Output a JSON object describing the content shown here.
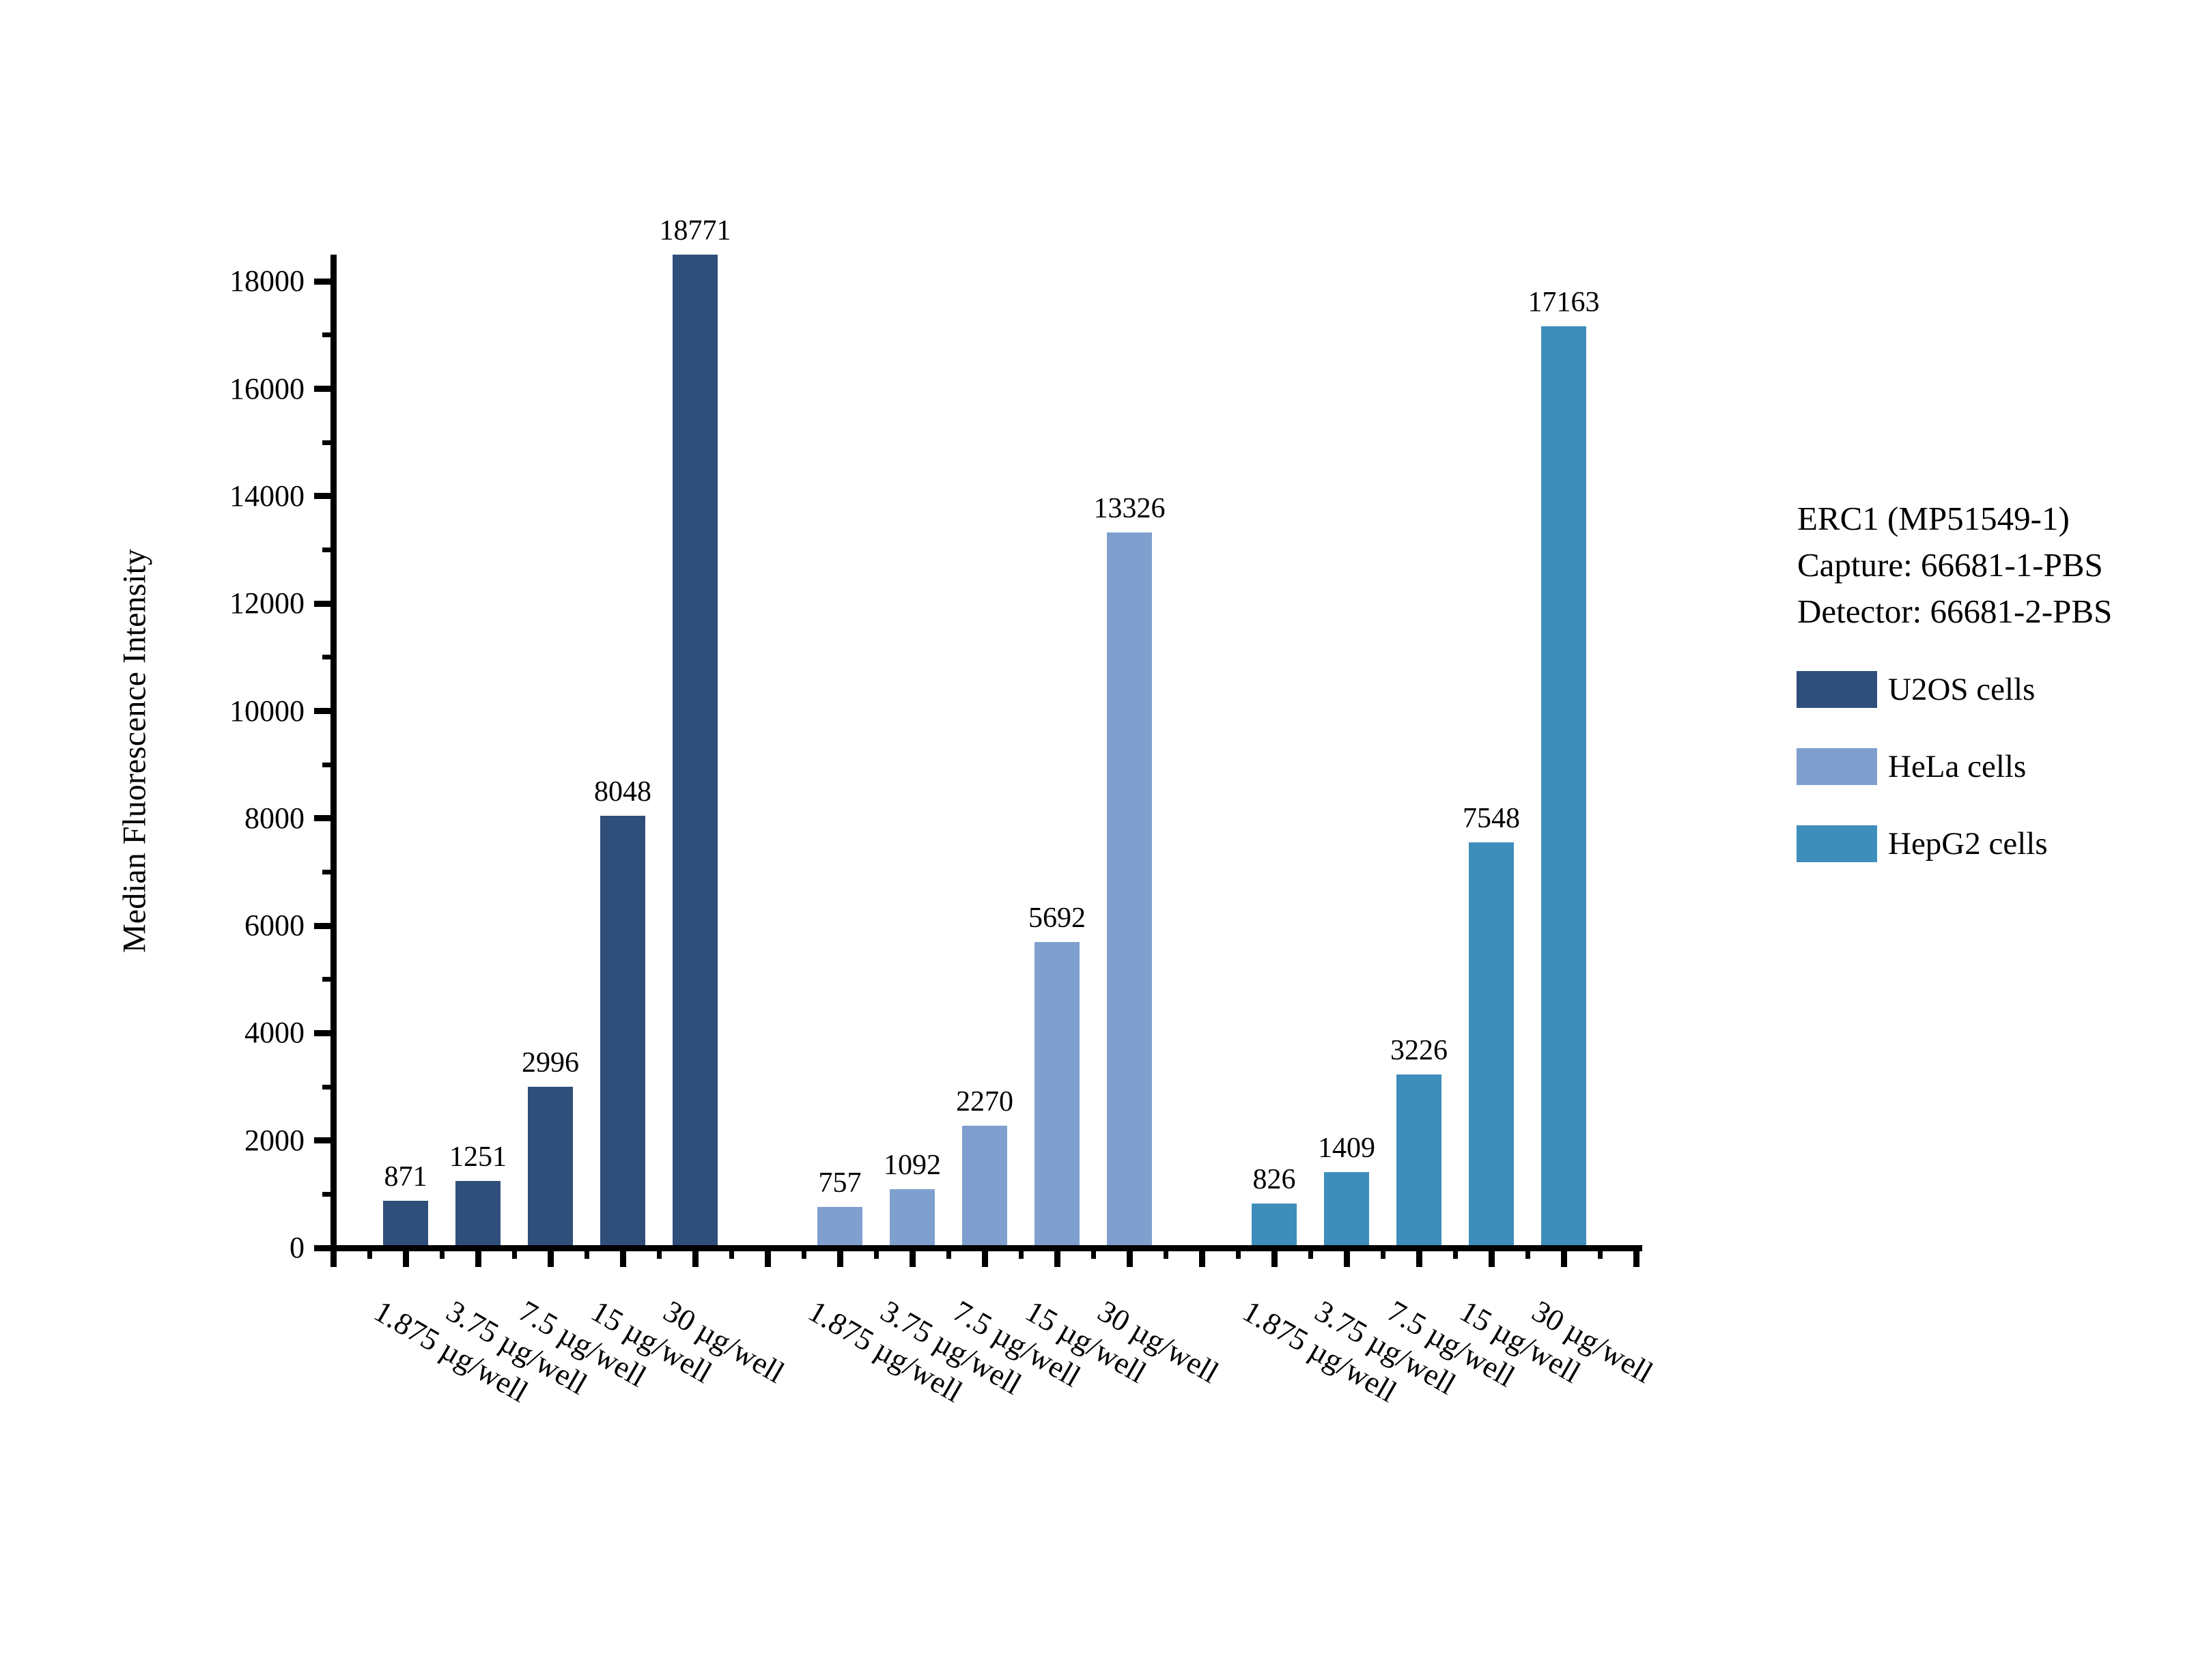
{
  "chart_data": {
    "type": "bar",
    "title": "",
    "ylabel": "Median Fluorescence Intensity",
    "xlabel": "",
    "categories": [
      "1.875 µg/well",
      "3.75 µg/well",
      "7.5 µg/well",
      "15 µg/well",
      "30 µg/well"
    ],
    "series": [
      {
        "name": "U2OS cells",
        "color": "#2F4E7A",
        "values": [
          871,
          1251,
          2996,
          8048,
          18771
        ]
      },
      {
        "name": "HeLa cells",
        "color": "#7F9FCF",
        "values": [
          757,
          1092,
          2270,
          5692,
          13326
        ]
      },
      {
        "name": "HepG2 cells",
        "color": "#3E8EBB",
        "values": [
          826,
          1409,
          3226,
          7548,
          17163
        ]
      }
    ],
    "y_axis": {
      "min": 0,
      "max": 18500,
      "major_step": 2000,
      "minor_step": 1000,
      "tick_labels": [
        "0",
        "2000",
        "4000",
        "6000",
        "8000",
        "10000",
        "12000",
        "14000",
        "16000",
        "18000"
      ]
    },
    "legend_position": "right",
    "grid": false,
    "bar_value_labels": true
  },
  "legend": {
    "title_lines": [
      "ERC1 (MP51549-1)",
      "Capture: 66681-1-PBS",
      "Detector: 66681-2-PBS"
    ]
  }
}
